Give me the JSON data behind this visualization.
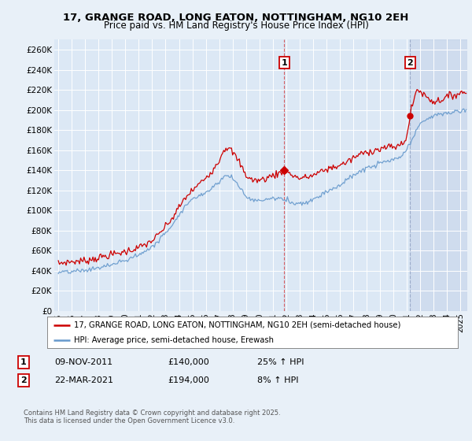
{
  "title": "17, GRANGE ROAD, LONG EATON, NOTTINGHAM, NG10 2EH",
  "subtitle": "Price paid vs. HM Land Registry's House Price Index (HPI)",
  "background_color": "#e8f0f8",
  "plot_bg_color": "#dce8f5",
  "ylim": [
    0,
    270000
  ],
  "yticks": [
    0,
    20000,
    40000,
    60000,
    80000,
    100000,
    120000,
    140000,
    160000,
    180000,
    200000,
    220000,
    240000,
    260000
  ],
  "ytick_labels": [
    "£0",
    "£20K",
    "£40K",
    "£60K",
    "£80K",
    "£100K",
    "£120K",
    "£140K",
    "£160K",
    "£180K",
    "£200K",
    "£220K",
    "£240K",
    "£260K"
  ],
  "xlim_start": 1994.7,
  "xlim_end": 2025.5,
  "marker1_x": 2011.86,
  "marker1_label": "1",
  "marker1_date": "09-NOV-2011",
  "marker1_price": "£140,000",
  "marker1_hpi": "25% ↑ HPI",
  "marker1_y": 140000,
  "marker2_x": 2021.23,
  "marker2_label": "2",
  "marker2_date": "22-MAR-2021",
  "marker2_price": "£194,000",
  "marker2_hpi": "8% ↑ HPI",
  "marker2_y": 194000,
  "red_line_color": "#cc0000",
  "blue_line_color": "#6699cc",
  "legend_line1": "17, GRANGE ROAD, LONG EATON, NOTTINGHAM, NG10 2EH (semi-detached house)",
  "legend_line2": "HPI: Average price, semi-detached house, Erewash",
  "footer": "Contains HM Land Registry data © Crown copyright and database right 2025.\nThis data is licensed under the Open Government Licence v3.0."
}
